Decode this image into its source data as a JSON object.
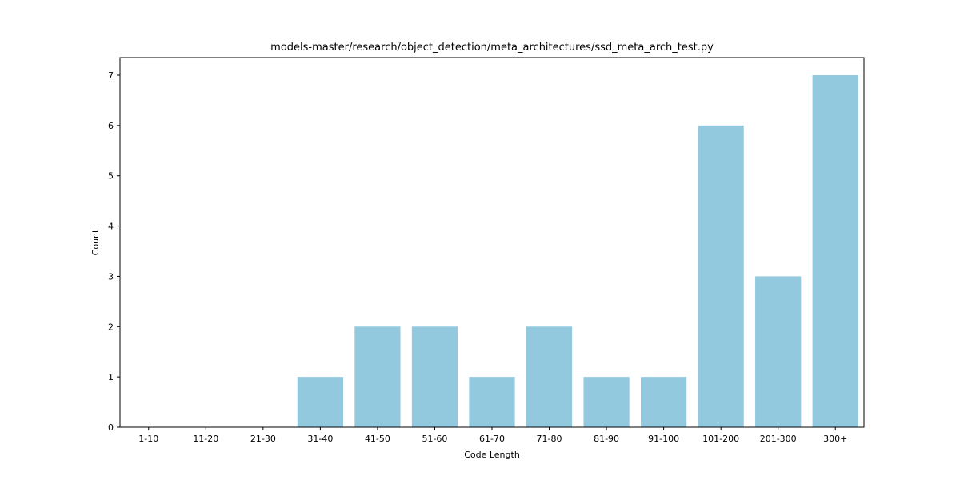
{
  "chart_data": {
    "type": "bar",
    "title": "models-master/research/object_detection/meta_architectures/ssd_meta_arch_test.py",
    "xlabel": "Code Length",
    "ylabel": "Count",
    "categories": [
      "1-10",
      "11-20",
      "21-30",
      "31-40",
      "41-50",
      "51-60",
      "61-70",
      "71-80",
      "81-90",
      "91-100",
      "101-200",
      "201-300",
      "300+"
    ],
    "values": [
      0,
      0,
      0,
      1,
      2,
      2,
      1,
      2,
      1,
      1,
      6,
      3,
      7
    ],
    "ylim": [
      0,
      7.35
    ],
    "yticks": [
      0,
      1,
      2,
      3,
      4,
      5,
      6,
      7
    ],
    "grid": false,
    "bar_color": "#92c9df"
  }
}
